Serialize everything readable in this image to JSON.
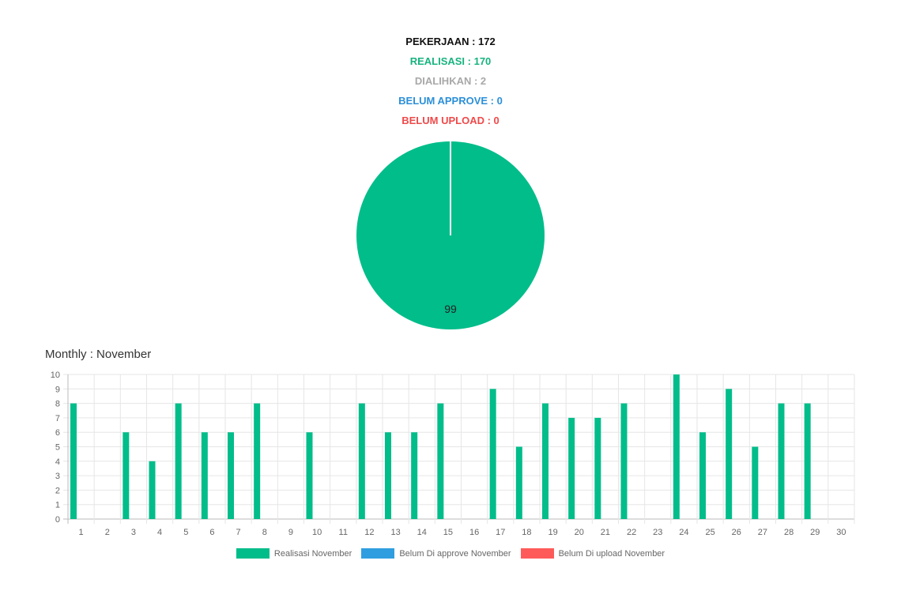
{
  "summary": {
    "pekerjaan": "PEKERJAAN : 172",
    "realisasi": "REALISASI : 170",
    "dialihkan": "DIALIHKAN : 2",
    "belum_approve": "BELUM APPROVE : 0",
    "belum_upload": "BELUM UPLOAD : 0"
  },
  "colors": {
    "realisasi": "#00bd8a",
    "belum_approve": "#2f9ee0",
    "belum_upload": "#ff5a5a"
  },
  "chart_data": [
    {
      "type": "pie",
      "slices": [
        {
          "value": 99,
          "label": "99",
          "color": "#00bd8a"
        },
        {
          "value": 0,
          "label": "",
          "color": "#2f9ee0"
        },
        {
          "value": 0,
          "label": "",
          "color": "#ff5a5a"
        }
      ]
    },
    {
      "type": "bar",
      "title": "Monthly : November",
      "categories": [
        "1",
        "2",
        "3",
        "4",
        "5",
        "6",
        "7",
        "8",
        "9",
        "10",
        "11",
        "12",
        "13",
        "14",
        "15",
        "16",
        "17",
        "18",
        "19",
        "20",
        "21",
        "22",
        "23",
        "24",
        "25",
        "26",
        "27",
        "28",
        "29",
        "30"
      ],
      "series": [
        {
          "name": "Realisasi November",
          "color": "#00bd8a",
          "values": [
            8,
            0,
            6,
            4,
            8,
            6,
            6,
            8,
            0,
            6,
            0,
            8,
            6,
            6,
            8,
            0,
            9,
            5,
            8,
            7,
            7,
            8,
            0,
            10,
            6,
            9,
            5,
            8,
            8,
            0
          ]
        },
        {
          "name": "Belum Di approve November",
          "color": "#2f9ee0",
          "values": [
            0,
            0,
            0,
            0,
            0,
            0,
            0,
            0,
            0,
            0,
            0,
            0,
            0,
            0,
            0,
            0,
            0,
            0,
            0,
            0,
            0,
            0,
            0,
            0,
            0,
            0,
            0,
            0,
            0,
            0
          ]
        },
        {
          "name": "Belum Di upload November",
          "color": "#ff5a5a",
          "values": [
            0,
            0,
            0,
            0,
            0,
            0,
            0,
            0,
            0,
            0,
            0,
            0,
            0,
            0,
            0,
            0,
            0,
            0,
            0,
            0,
            0,
            0,
            0,
            0,
            0,
            0,
            0,
            0,
            0,
            0
          ]
        }
      ],
      "ylim": [
        0,
        10
      ],
      "yticks": [
        0,
        1,
        2,
        3,
        4,
        5,
        6,
        7,
        8,
        9,
        10
      ],
      "grid": true,
      "legend": "bottom-center"
    }
  ]
}
